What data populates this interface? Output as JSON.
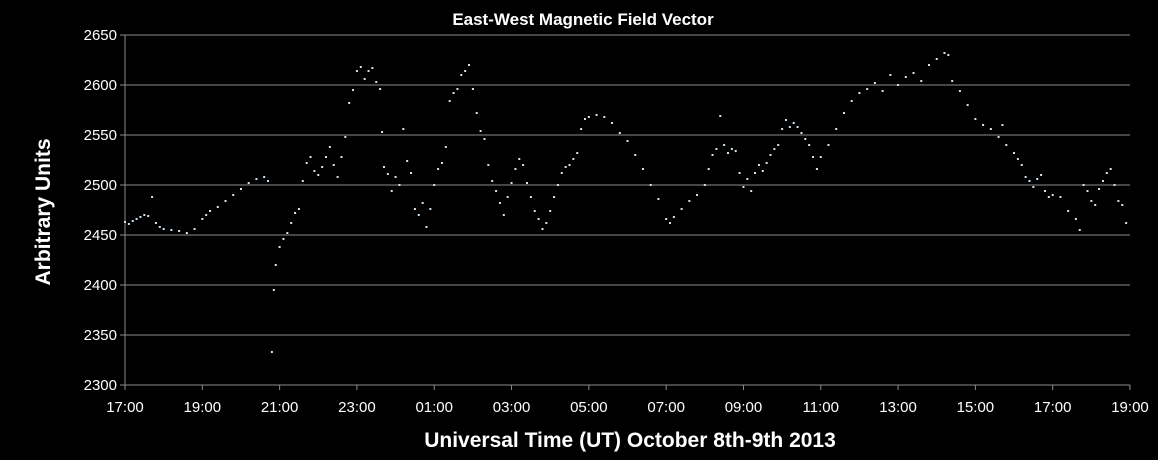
{
  "chart_data": {
    "type": "scatter",
    "title": "East-West Magnetic Field Vector",
    "xlabel": "Universal Time (UT) October 8th-9th  2013",
    "ylabel": "Arbitrary Units",
    "x_unit": "hours",
    "xlim": [
      17,
      43
    ],
    "ylim": [
      2300,
      2650
    ],
    "x_ticks": [
      17,
      19,
      21,
      23,
      25,
      27,
      29,
      31,
      33,
      35,
      37,
      39,
      41,
      43
    ],
    "x_tick_labels": [
      "17:00",
      "19:00",
      "21:00",
      "23:00",
      "01:00",
      "03:00",
      "05:00",
      "07:00",
      "09:00",
      "11:00",
      "13:00",
      "15:00",
      "17:00",
      "19:00"
    ],
    "y_ticks": [
      2300,
      2350,
      2400,
      2450,
      2500,
      2550,
      2600,
      2650
    ],
    "y_tick_labels": [
      "2300",
      "2350",
      "2400",
      "2450",
      "2500",
      "2550",
      "2600",
      "2650"
    ],
    "grid": "horizontal",
    "legend": "none",
    "colors": {
      "background": "#000000",
      "point": "#cfe6f2",
      "grid": "#8c8c8c",
      "text": "#ffffff"
    },
    "series": [
      {
        "points": [
          [
            17.0,
            2463
          ],
          [
            17.1,
            2461
          ],
          [
            17.2,
            2464
          ],
          [
            17.3,
            2466
          ],
          [
            17.4,
            2468
          ],
          [
            17.5,
            2470
          ],
          [
            17.6,
            2469
          ],
          [
            17.7,
            2488
          ],
          [
            17.8,
            2462
          ],
          [
            17.9,
            2458
          ],
          [
            18.0,
            2456
          ],
          [
            18.2,
            2455
          ],
          [
            18.4,
            2454
          ],
          [
            18.6,
            2452
          ],
          [
            18.8,
            2456
          ],
          [
            19.0,
            2466
          ],
          [
            19.1,
            2470
          ],
          [
            19.2,
            2474
          ],
          [
            19.4,
            2478
          ],
          [
            19.6,
            2484
          ],
          [
            19.8,
            2490
          ],
          [
            20.0,
            2496
          ],
          [
            20.2,
            2502
          ],
          [
            20.4,
            2506
          ],
          [
            20.6,
            2508
          ],
          [
            20.7,
            2504
          ],
          [
            20.8,
            2333
          ],
          [
            20.85,
            2395
          ],
          [
            20.9,
            2420
          ],
          [
            21.0,
            2438
          ],
          [
            21.1,
            2446
          ],
          [
            21.2,
            2452
          ],
          [
            21.3,
            2462
          ],
          [
            21.4,
            2472
          ],
          [
            21.5,
            2476
          ],
          [
            21.6,
            2504
          ],
          [
            21.7,
            2522
          ],
          [
            21.8,
            2528
          ],
          [
            21.9,
            2514
          ],
          [
            22.0,
            2510
          ],
          [
            22.1,
            2518
          ],
          [
            22.2,
            2528
          ],
          [
            22.3,
            2538
          ],
          [
            22.4,
            2520
          ],
          [
            22.5,
            2508
          ],
          [
            22.6,
            2528
          ],
          [
            22.7,
            2548
          ],
          [
            22.8,
            2582
          ],
          [
            22.9,
            2595
          ],
          [
            23.0,
            2614
          ],
          [
            23.1,
            2618
          ],
          [
            23.2,
            2606
          ],
          [
            23.3,
            2614
          ],
          [
            23.4,
            2617
          ],
          [
            23.5,
            2603
          ],
          [
            23.6,
            2596
          ],
          [
            23.65,
            2553
          ],
          [
            23.7,
            2518
          ],
          [
            23.8,
            2511
          ],
          [
            23.9,
            2494
          ],
          [
            24.0,
            2508
          ],
          [
            24.1,
            2500
          ],
          [
            24.2,
            2556
          ],
          [
            24.3,
            2524
          ],
          [
            24.4,
            2512
          ],
          [
            24.5,
            2476
          ],
          [
            24.6,
            2470
          ],
          [
            24.7,
            2482
          ],
          [
            24.8,
            2458
          ],
          [
            24.9,
            2476
          ],
          [
            25.0,
            2500
          ],
          [
            25.1,
            2516
          ],
          [
            25.2,
            2522
          ],
          [
            25.3,
            2538
          ],
          [
            25.4,
            2584
          ],
          [
            25.5,
            2592
          ],
          [
            25.6,
            2596
          ],
          [
            25.7,
            2610
          ],
          [
            25.8,
            2614
          ],
          [
            25.9,
            2620
          ],
          [
            26.0,
            2596
          ],
          [
            26.1,
            2572
          ],
          [
            26.2,
            2554
          ],
          [
            26.3,
            2546
          ],
          [
            26.4,
            2520
          ],
          [
            26.5,
            2504
          ],
          [
            26.6,
            2494
          ],
          [
            26.7,
            2482
          ],
          [
            26.8,
            2470
          ],
          [
            26.9,
            2488
          ],
          [
            27.0,
            2502
          ],
          [
            27.1,
            2516
          ],
          [
            27.2,
            2526
          ],
          [
            27.3,
            2520
          ],
          [
            27.4,
            2502
          ],
          [
            27.5,
            2488
          ],
          [
            27.6,
            2474
          ],
          [
            27.7,
            2466
          ],
          [
            27.8,
            2456
          ],
          [
            27.9,
            2462
          ],
          [
            28.0,
            2474
          ],
          [
            28.1,
            2488
          ],
          [
            28.2,
            2500
          ],
          [
            28.3,
            2512
          ],
          [
            28.4,
            2518
          ],
          [
            28.5,
            2520
          ],
          [
            28.6,
            2526
          ],
          [
            28.7,
            2532
          ],
          [
            28.8,
            2556
          ],
          [
            28.9,
            2566
          ],
          [
            29.0,
            2568
          ],
          [
            29.2,
            2570
          ],
          [
            29.4,
            2568
          ],
          [
            29.6,
            2562
          ],
          [
            29.8,
            2552
          ],
          [
            30.0,
            2544
          ],
          [
            30.2,
            2530
          ],
          [
            30.4,
            2516
          ],
          [
            30.6,
            2500
          ],
          [
            30.8,
            2486
          ],
          [
            31.0,
            2466
          ],
          [
            31.1,
            2462
          ],
          [
            31.2,
            2468
          ],
          [
            31.4,
            2476
          ],
          [
            31.6,
            2484
          ],
          [
            31.8,
            2490
          ],
          [
            32.0,
            2500
          ],
          [
            32.1,
            2516
          ],
          [
            32.2,
            2530
          ],
          [
            32.3,
            2536
          ],
          [
            32.4,
            2569
          ],
          [
            32.5,
            2540
          ],
          [
            32.6,
            2532
          ],
          [
            32.7,
            2536
          ],
          [
            32.8,
            2534
          ],
          [
            32.9,
            2512
          ],
          [
            33.0,
            2498
          ],
          [
            33.1,
            2506
          ],
          [
            33.2,
            2494
          ],
          [
            33.3,
            2512
          ],
          [
            33.4,
            2520
          ],
          [
            33.5,
            2514
          ],
          [
            33.6,
            2522
          ],
          [
            33.7,
            2530
          ],
          [
            33.8,
            2536
          ],
          [
            33.9,
            2540
          ],
          [
            34.0,
            2556
          ],
          [
            34.1,
            2565
          ],
          [
            34.2,
            2558
          ],
          [
            34.3,
            2562
          ],
          [
            34.4,
            2558
          ],
          [
            34.5,
            2552
          ],
          [
            34.6,
            2546
          ],
          [
            34.7,
            2540
          ],
          [
            34.8,
            2528
          ],
          [
            34.9,
            2516
          ],
          [
            35.0,
            2528
          ],
          [
            35.2,
            2540
          ],
          [
            35.4,
            2556
          ],
          [
            35.6,
            2572
          ],
          [
            35.8,
            2584
          ],
          [
            36.0,
            2592
          ],
          [
            36.2,
            2596
          ],
          [
            36.4,
            2602
          ],
          [
            36.6,
            2594
          ],
          [
            36.8,
            2610
          ],
          [
            37.0,
            2600
          ],
          [
            37.2,
            2608
          ],
          [
            37.4,
            2612
          ],
          [
            37.6,
            2604
          ],
          [
            37.8,
            2620
          ],
          [
            38.0,
            2626
          ],
          [
            38.2,
            2632
          ],
          [
            38.3,
            2630
          ],
          [
            38.4,
            2604
          ],
          [
            38.6,
            2594
          ],
          [
            38.8,
            2580
          ],
          [
            39.0,
            2566
          ],
          [
            39.2,
            2560
          ],
          [
            39.4,
            2556
          ],
          [
            39.6,
            2548
          ],
          [
            39.7,
            2560
          ],
          [
            39.8,
            2540
          ],
          [
            40.0,
            2532
          ],
          [
            40.1,
            2526
          ],
          [
            40.2,
            2520
          ],
          [
            40.3,
            2508
          ],
          [
            40.4,
            2504
          ],
          [
            40.5,
            2498
          ],
          [
            40.6,
            2506
          ],
          [
            40.7,
            2510
          ],
          [
            40.8,
            2494
          ],
          [
            40.9,
            2488
          ],
          [
            41.0,
            2490
          ],
          [
            41.2,
            2488
          ],
          [
            41.4,
            2474
          ],
          [
            41.6,
            2466
          ],
          [
            41.7,
            2455
          ],
          [
            41.8,
            2500
          ],
          [
            41.9,
            2494
          ],
          [
            42.0,
            2484
          ],
          [
            42.1,
            2480
          ],
          [
            42.2,
            2496
          ],
          [
            42.3,
            2504
          ],
          [
            42.4,
            2512
          ],
          [
            42.5,
            2516
          ],
          [
            42.6,
            2500
          ],
          [
            42.7,
            2484
          ],
          [
            42.8,
            2480
          ],
          [
            42.9,
            2462
          ]
        ]
      }
    ]
  }
}
